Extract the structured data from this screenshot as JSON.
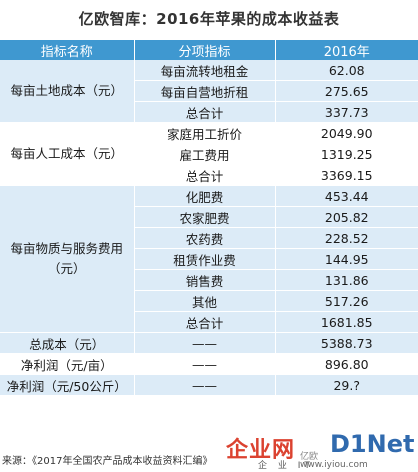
{
  "title": "亿欧智库：2016年苹果的成本收益表",
  "headers": [
    "指标名称",
    "分项指标",
    "2016年"
  ],
  "groups": [
    {
      "name": "每亩土地成本（元）",
      "rows": [
        {
          "item": "每亩流转地租金",
          "value": "62.08"
        },
        {
          "item": "每亩自营地折租",
          "value": "275.65"
        },
        {
          "item": "总合计",
          "value": "337.73"
        }
      ]
    },
    {
      "name": "每亩人工成本（元）",
      "rows": [
        {
          "item": "家庭用工折价",
          "value": "2049.90"
        },
        {
          "item": "雇工费用",
          "value": "1319.25"
        },
        {
          "item": "总合计",
          "value": "3369.15"
        }
      ]
    },
    {
      "name": "每亩物质与服务费用（元）",
      "rows": [
        {
          "item": "化肥费",
          "value": "453.44"
        },
        {
          "item": "农家肥费",
          "value": "205.82"
        },
        {
          "item": "农药费",
          "value": "228.52"
        },
        {
          "item": "租赁作业费",
          "value": "144.95"
        },
        {
          "item": "销售费",
          "value": "131.86"
        },
        {
          "item": "其他",
          "value": "517.26"
        },
        {
          "item": "总合计",
          "value": "1681.85"
        }
      ]
    }
  ],
  "totals": [
    {
      "name": "总成本（元）",
      "item": "——",
      "value": "5388.73"
    },
    {
      "name": "净利润（元/亩）",
      "item": "——",
      "value": "896.80"
    },
    {
      "name": "净利润（元/50公斤）",
      "item": "——",
      "value": "29.?"
    }
  ],
  "source": "来源：《2017年全国农产品成本收益资料汇编》",
  "watermark": {
    "brand_cn": "企业网",
    "brand_en": "D1Net",
    "small": "亿欧",
    "sub": "企 业 IT",
    "url": "www.iyiou.com"
  }
}
